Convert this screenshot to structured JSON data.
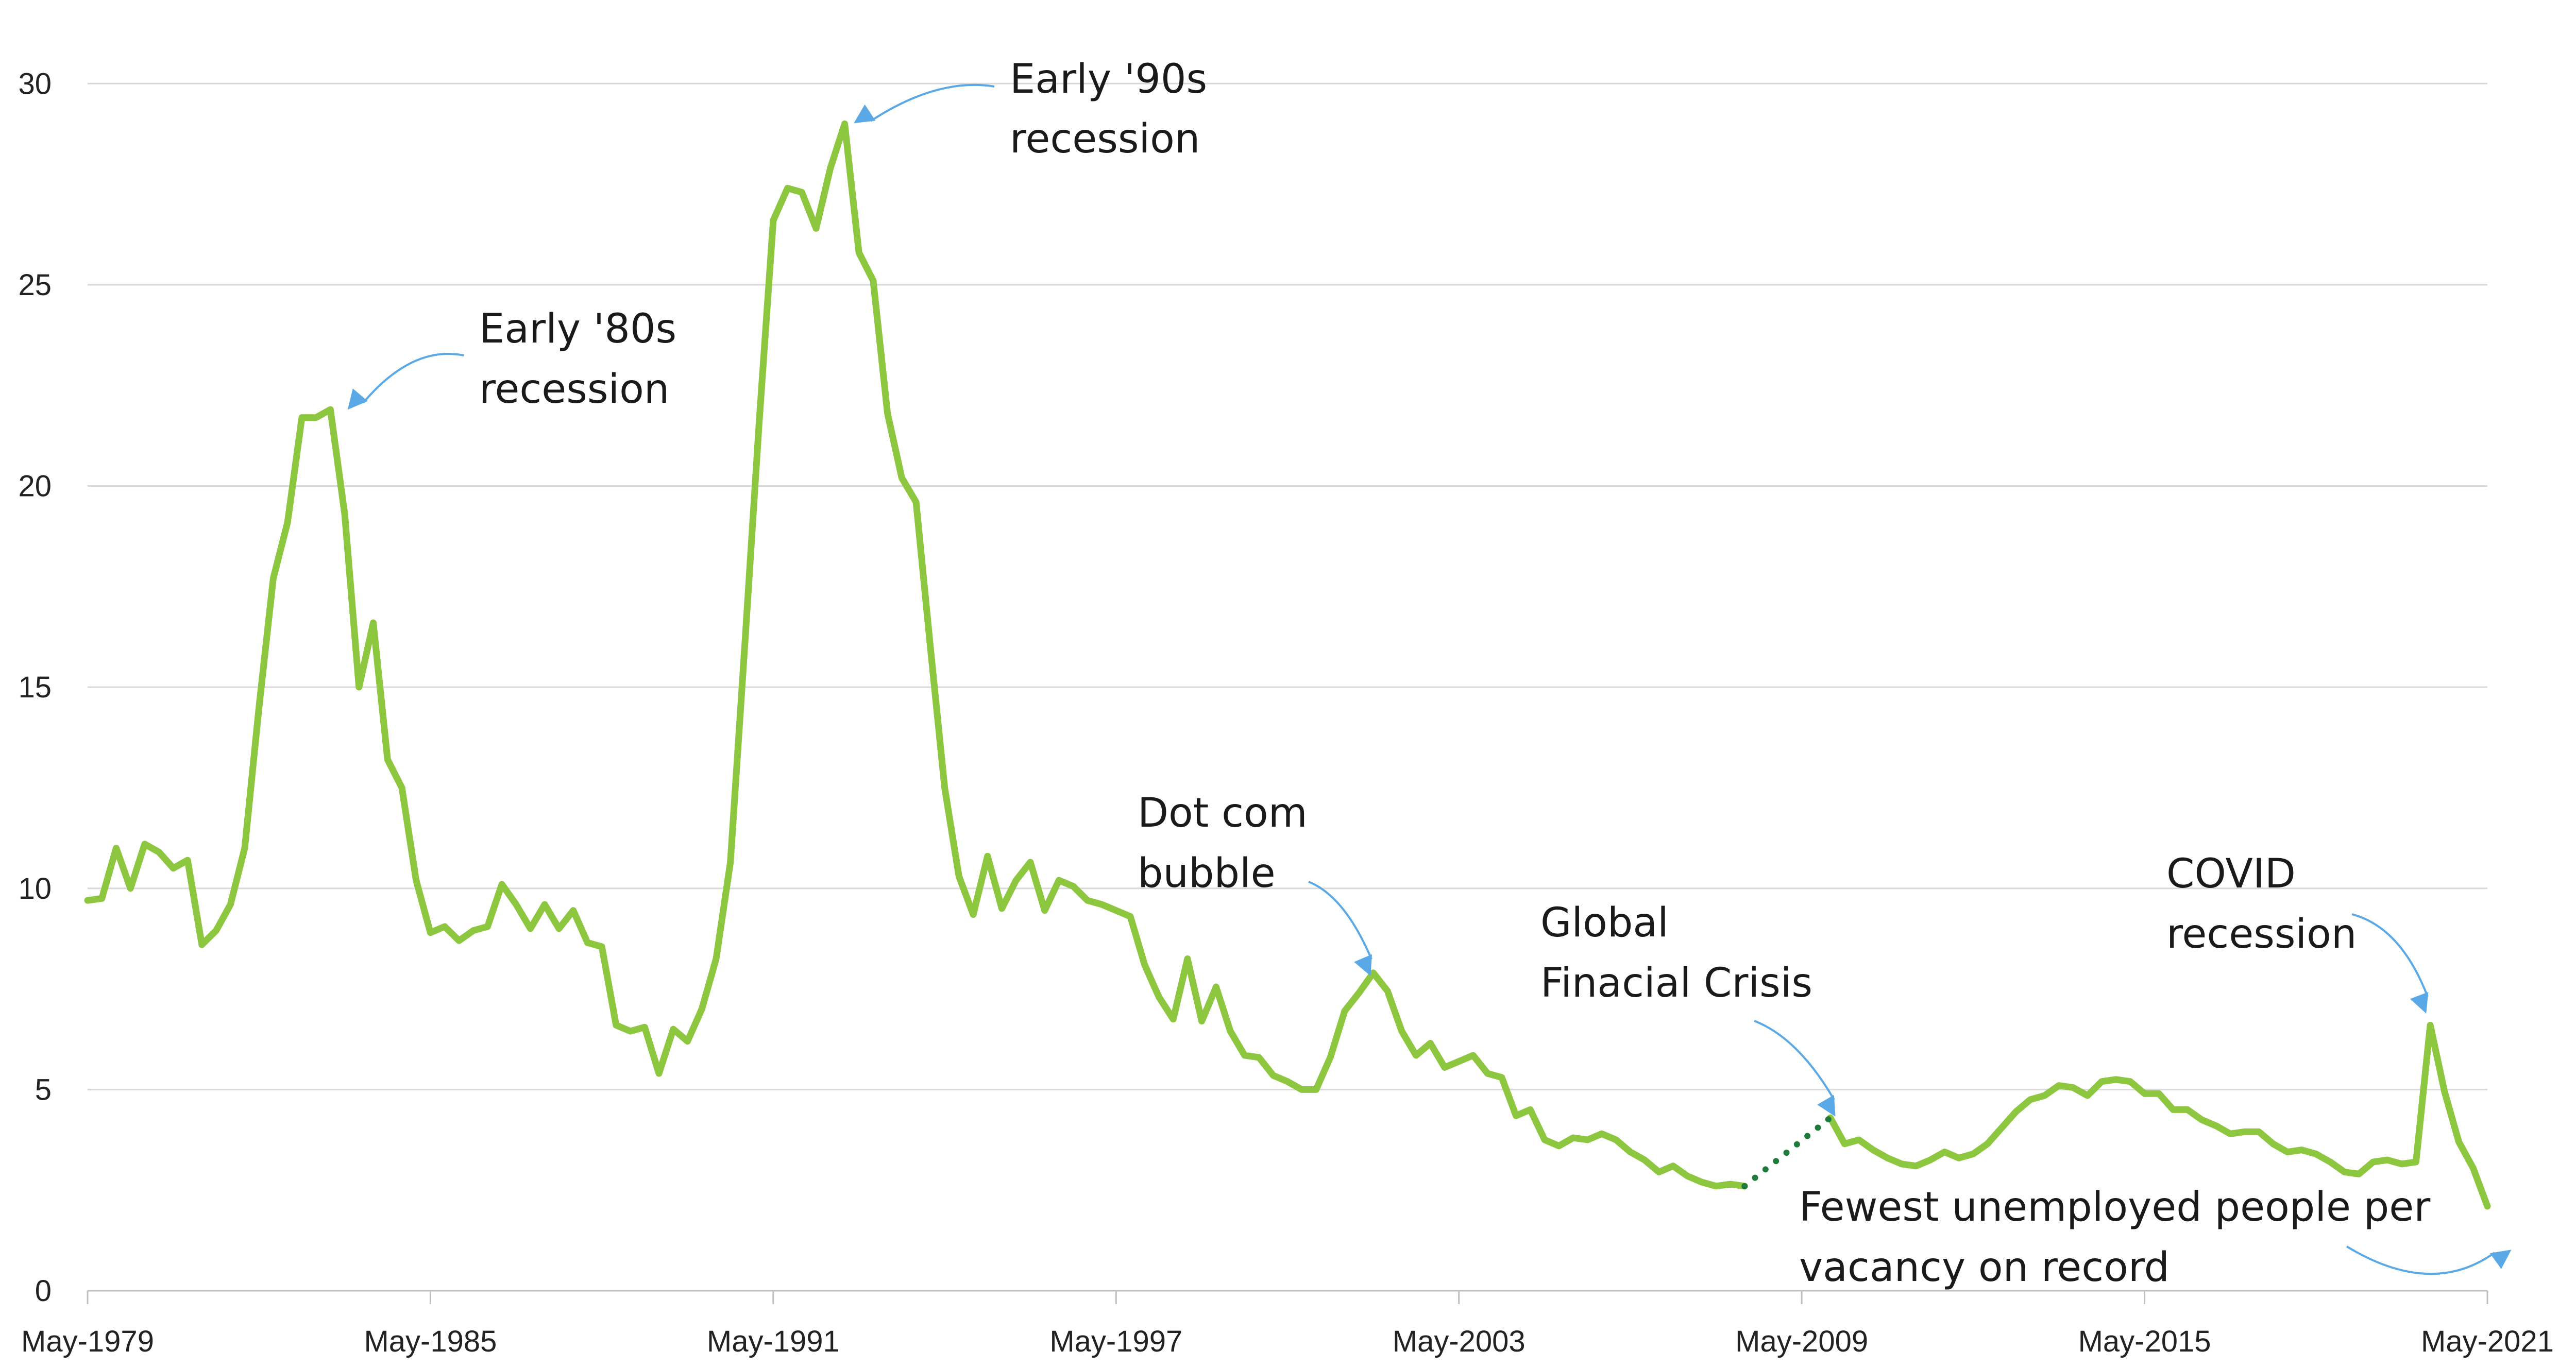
{
  "chart_data": {
    "type": "line",
    "title": "",
    "xlabel": "",
    "ylabel": "",
    "ylim": [
      0,
      32
    ],
    "yticks": [
      0,
      5,
      10,
      15,
      20,
      25,
      30
    ],
    "grid": true,
    "legend": "none",
    "x_range": [
      1979.33,
      2021.33
    ],
    "xticks": [
      {
        "x": 1979.33,
        "label": "May-1979"
      },
      {
        "x": 1985.33,
        "label": "May-1985"
      },
      {
        "x": 1991.33,
        "label": "May-1991"
      },
      {
        "x": 1997.33,
        "label": "May-1997"
      },
      {
        "x": 2003.33,
        "label": "May-2003"
      },
      {
        "x": 2009.33,
        "label": "May-2009"
      },
      {
        "x": 2015.33,
        "label": "May-2015"
      },
      {
        "x": 2021.33,
        "label": "May-2021"
      }
    ],
    "colors": {
      "line": "#8dc63f",
      "gap": "#1e7b3c",
      "arrow": "#5aa9e6"
    },
    "series": [
      {
        "values": [
          [
            1979.33,
            9.7
          ],
          [
            1979.58,
            9.75
          ],
          [
            1979.83,
            11.0
          ],
          [
            1980.08,
            10.0
          ],
          [
            1980.33,
            11.1
          ],
          [
            1980.58,
            10.9
          ],
          [
            1980.83,
            10.5
          ],
          [
            1981.08,
            10.7
          ],
          [
            1981.33,
            8.6
          ],
          [
            1981.58,
            8.95
          ],
          [
            1981.83,
            9.6
          ],
          [
            1982.08,
            11.0
          ],
          [
            1982.33,
            14.5
          ],
          [
            1982.58,
            17.7
          ],
          [
            1982.83,
            19.1
          ],
          [
            1983.08,
            21.7
          ],
          [
            1983.33,
            21.7
          ],
          [
            1983.58,
            21.9
          ],
          [
            1983.83,
            19.3
          ],
          [
            1984.08,
            15.0
          ],
          [
            1984.33,
            16.6
          ],
          [
            1984.58,
            13.2
          ],
          [
            1984.83,
            12.5
          ],
          [
            1985.08,
            10.2
          ],
          [
            1985.33,
            8.9
          ],
          [
            1985.58,
            9.05
          ],
          [
            1985.83,
            8.7
          ],
          [
            1986.08,
            8.95
          ],
          [
            1986.33,
            9.05
          ],
          [
            1986.58,
            10.1
          ],
          [
            1986.83,
            9.6
          ],
          [
            1987.08,
            9.0
          ],
          [
            1987.33,
            9.6
          ],
          [
            1987.58,
            9.0
          ],
          [
            1987.83,
            9.45
          ],
          [
            1988.08,
            8.65
          ],
          [
            1988.33,
            8.55
          ],
          [
            1988.58,
            6.6
          ],
          [
            1988.83,
            6.45
          ],
          [
            1989.08,
            6.55
          ],
          [
            1989.33,
            5.4
          ],
          [
            1989.58,
            6.5
          ],
          [
            1989.83,
            6.2
          ],
          [
            1990.08,
            7.0
          ],
          [
            1990.33,
            8.25
          ],
          [
            1990.58,
            10.65
          ],
          [
            1990.83,
            16.0
          ],
          [
            1991.08,
            21.5
          ],
          [
            1991.33,
            26.6
          ],
          [
            1991.58,
            27.4
          ],
          [
            1991.83,
            27.3
          ],
          [
            1992.08,
            26.4
          ],
          [
            1992.33,
            27.9
          ],
          [
            1992.58,
            29.0
          ],
          [
            1992.83,
            25.8
          ],
          [
            1993.08,
            25.1
          ],
          [
            1993.33,
            21.8
          ],
          [
            1993.58,
            20.2
          ],
          [
            1993.83,
            19.6
          ],
          [
            1994.08,
            16.0
          ],
          [
            1994.33,
            12.5
          ],
          [
            1994.58,
            10.3
          ],
          [
            1994.83,
            9.35
          ],
          [
            1995.08,
            10.8
          ],
          [
            1995.33,
            9.5
          ],
          [
            1995.58,
            10.2
          ],
          [
            1995.83,
            10.65
          ],
          [
            1996.08,
            9.45
          ],
          [
            1996.33,
            10.2
          ],
          [
            1996.58,
            10.05
          ],
          [
            1996.83,
            9.7
          ],
          [
            1997.08,
            9.6
          ],
          [
            1997.33,
            9.45
          ],
          [
            1997.58,
            9.3
          ],
          [
            1997.83,
            8.1
          ],
          [
            1998.08,
            7.3
          ],
          [
            1998.33,
            6.75
          ],
          [
            1998.58,
            8.25
          ],
          [
            1998.83,
            6.7
          ],
          [
            1999.08,
            7.55
          ],
          [
            1999.33,
            6.45
          ],
          [
            1999.58,
            5.85
          ],
          [
            1999.83,
            5.8
          ],
          [
            2000.08,
            5.35
          ],
          [
            2000.33,
            5.2
          ],
          [
            2000.58,
            5.0
          ],
          [
            2000.83,
            5.0
          ],
          [
            2001.08,
            5.8
          ],
          [
            2001.33,
            6.95
          ],
          [
            2001.58,
            7.4
          ],
          [
            2001.83,
            7.9
          ],
          [
            2002.08,
            7.45
          ],
          [
            2002.33,
            6.45
          ],
          [
            2002.58,
            5.85
          ],
          [
            2002.83,
            6.15
          ],
          [
            2003.08,
            5.55
          ],
          [
            2003.33,
            5.7
          ],
          [
            2003.58,
            5.85
          ],
          [
            2003.83,
            5.4
          ],
          [
            2004.08,
            5.3
          ],
          [
            2004.33,
            4.35
          ],
          [
            2004.58,
            4.5
          ],
          [
            2004.83,
            3.75
          ],
          [
            2005.08,
            3.6
          ],
          [
            2005.33,
            3.8
          ],
          [
            2005.58,
            3.75
          ],
          [
            2005.83,
            3.9
          ],
          [
            2006.08,
            3.75
          ],
          [
            2006.33,
            3.45
          ],
          [
            2006.58,
            3.25
          ],
          [
            2006.83,
            2.95
          ],
          [
            2007.08,
            3.1
          ],
          [
            2007.33,
            2.85
          ],
          [
            2007.58,
            2.7
          ],
          [
            2007.83,
            2.6
          ],
          [
            2008.08,
            2.65
          ],
          [
            2008.33,
            2.6
          ]
        ]
      },
      {
        "values": [
          [
            2009.83,
            4.3
          ],
          [
            2010.08,
            3.65
          ],
          [
            2010.33,
            3.75
          ],
          [
            2010.58,
            3.5
          ],
          [
            2010.83,
            3.3
          ],
          [
            2011.08,
            3.15
          ],
          [
            2011.33,
            3.1
          ],
          [
            2011.58,
            3.25
          ],
          [
            2011.83,
            3.45
          ],
          [
            2012.08,
            3.3
          ],
          [
            2012.33,
            3.4
          ],
          [
            2012.58,
            3.65
          ],
          [
            2012.83,
            4.05
          ],
          [
            2013.08,
            4.45
          ],
          [
            2013.33,
            4.75
          ],
          [
            2013.58,
            4.85
          ],
          [
            2013.83,
            5.1
          ],
          [
            2014.08,
            5.05
          ],
          [
            2014.33,
            4.85
          ],
          [
            2014.58,
            5.2
          ],
          [
            2014.83,
            5.25
          ],
          [
            2015.08,
            5.2
          ],
          [
            2015.33,
            4.9
          ],
          [
            2015.58,
            4.9
          ],
          [
            2015.83,
            4.5
          ],
          [
            2016.08,
            4.5
          ],
          [
            2016.33,
            4.25
          ],
          [
            2016.58,
            4.1
          ],
          [
            2016.83,
            3.9
          ],
          [
            2017.08,
            3.95
          ],
          [
            2017.33,
            3.95
          ],
          [
            2017.58,
            3.65
          ],
          [
            2017.83,
            3.45
          ],
          [
            2018.08,
            3.5
          ],
          [
            2018.33,
            3.4
          ],
          [
            2018.58,
            3.2
          ],
          [
            2018.83,
            2.95
          ],
          [
            2019.08,
            2.9
          ],
          [
            2019.33,
            3.2
          ],
          [
            2019.58,
            3.25
          ],
          [
            2019.83,
            3.15
          ],
          [
            2020.08,
            3.2
          ],
          [
            2020.33,
            6.6
          ],
          [
            2020.58,
            4.95
          ],
          [
            2020.83,
            3.7
          ],
          [
            2021.08,
            3.05
          ],
          [
            2021.33,
            2.1
          ]
        ]
      }
    ],
    "gap_segment": [
      [
        2008.33,
        2.6
      ],
      [
        2009.83,
        4.3
      ]
    ],
    "annotations": [
      {
        "lines": [
          "Early '80s",
          "recession"
        ]
      },
      {
        "lines": [
          "Early '90s",
          "recession"
        ]
      },
      {
        "lines": [
          "Dot com",
          "bubble"
        ]
      },
      {
        "lines": [
          "Global",
          "Finacial Crisis"
        ]
      },
      {
        "lines": [
          "COVID",
          "recession"
        ]
      },
      {
        "lines": [
          "Fewest unemployed people per",
          "vacancy on record"
        ]
      }
    ]
  }
}
